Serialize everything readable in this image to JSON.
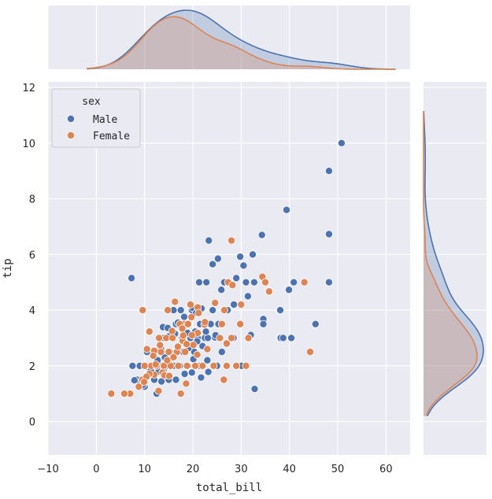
{
  "chart_data": {
    "type": "scatter",
    "xlabel": "total_bill",
    "ylabel": "tip",
    "xlim": [
      -10,
      65
    ],
    "ylim": [
      -1.2,
      12.2
    ],
    "xticks": [
      -10,
      0,
      10,
      20,
      30,
      40,
      50,
      60
    ],
    "yticks": [
      0,
      2,
      4,
      6,
      8,
      10,
      12
    ],
    "grid": true,
    "background": "#eaeaf2",
    "legend": {
      "title": "sex",
      "placement": "top-left",
      "entries": [
        "Male",
        "Female"
      ]
    },
    "marginals": {
      "top": "kde of total_bill by sex",
      "right": "kde of tip by sex"
    },
    "series": [
      {
        "name": "Male",
        "color": "#4c72b0",
        "points": [
          [
            7.3,
            5.15
          ],
          [
            50.8,
            10.0
          ],
          [
            48.2,
            9.0
          ],
          [
            39.4,
            7.6
          ],
          [
            48.2,
            6.73
          ],
          [
            34.3,
            6.7
          ],
          [
            23.3,
            6.5
          ],
          [
            29.8,
            5.92
          ],
          [
            32.4,
            6.0
          ],
          [
            25.2,
            5.85
          ],
          [
            30.5,
            5.6
          ],
          [
            24.1,
            5.65
          ],
          [
            21.3,
            5.0
          ],
          [
            22.8,
            5.0
          ],
          [
            26.5,
            5.0
          ],
          [
            31.0,
            5.0
          ],
          [
            32.7,
            5.0
          ],
          [
            40.9,
            5.0
          ],
          [
            48.2,
            5.0
          ],
          [
            29.0,
            5.15
          ],
          [
            25.9,
            4.73
          ],
          [
            39.9,
            4.73
          ],
          [
            31.4,
            4.5
          ],
          [
            27.2,
            4.0
          ],
          [
            28.5,
            4.2
          ],
          [
            24.1,
            4.0
          ],
          [
            19.8,
            4.0
          ],
          [
            17.5,
            4.0
          ],
          [
            16.0,
            4.0
          ],
          [
            38.1,
            4.0
          ],
          [
            20.0,
            4.08
          ],
          [
            18.2,
            3.76
          ],
          [
            23.7,
            3.5
          ],
          [
            25.3,
            3.5
          ],
          [
            16.5,
            3.5
          ],
          [
            13.8,
            3.39
          ],
          [
            45.4,
            3.5
          ],
          [
            34.6,
            3.68
          ],
          [
            34.6,
            3.5
          ],
          [
            32.0,
            3.11
          ],
          [
            38.2,
            3.0
          ],
          [
            38.7,
            3.0
          ],
          [
            40.4,
            3.0
          ],
          [
            28.4,
            3.0
          ],
          [
            24.6,
            3.02
          ],
          [
            22.5,
            3.0
          ],
          [
            21.0,
            3.0
          ],
          [
            19.5,
            3.0
          ],
          [
            17.8,
            3.0
          ],
          [
            15.5,
            3.0
          ],
          [
            14.0,
            3.0
          ],
          [
            21.5,
            3.5
          ],
          [
            20.5,
            3.23
          ],
          [
            18.9,
            3.18
          ],
          [
            16.3,
            3.15
          ],
          [
            15.0,
            3.06
          ],
          [
            23.1,
            3.0
          ],
          [
            22.0,
            2.71
          ],
          [
            20.3,
            2.5
          ],
          [
            18.0,
            2.5
          ],
          [
            16.8,
            2.56
          ],
          [
            15.2,
            2.5
          ],
          [
            13.4,
            2.6
          ],
          [
            12.0,
            2.5
          ],
          [
            10.5,
            2.5
          ],
          [
            26.0,
            2.5
          ],
          [
            23.0,
            2.2
          ],
          [
            21.5,
            2.0
          ],
          [
            20.1,
            2.24
          ],
          [
            19.0,
            2.0
          ],
          [
            17.3,
            2.0
          ],
          [
            16.0,
            2.0
          ],
          [
            14.5,
            2.0
          ],
          [
            13.0,
            2.0
          ],
          [
            11.6,
            2.0
          ],
          [
            10.3,
            2.0
          ],
          [
            9.0,
            2.0
          ],
          [
            7.5,
            2.0
          ],
          [
            30.1,
            2.0
          ],
          [
            29.0,
            2.0
          ],
          [
            27.0,
            2.0
          ],
          [
            25.0,
            2.0
          ],
          [
            23.2,
            1.78
          ],
          [
            21.7,
            1.58
          ],
          [
            19.8,
            1.76
          ],
          [
            18.3,
            1.71
          ],
          [
            16.5,
            1.5
          ],
          [
            15.0,
            1.5
          ],
          [
            13.5,
            1.44
          ],
          [
            12.0,
            1.5
          ],
          [
            10.4,
            1.6
          ],
          [
            8.5,
            1.5
          ],
          [
            7.9,
            1.48
          ],
          [
            32.8,
            1.17
          ],
          [
            12.5,
            1.0
          ],
          [
            10.0,
            1.25
          ],
          [
            9.5,
            1.5
          ],
          [
            11.0,
            1.92
          ],
          [
            12.9,
            1.8
          ],
          [
            14.2,
            2.3
          ],
          [
            17.0,
            2.7
          ],
          [
            18.8,
            3.48
          ],
          [
            20.7,
            3.9
          ],
          [
            22.7,
            3.23
          ],
          [
            24.7,
            3.1
          ],
          [
            20.9,
            2.88
          ],
          [
            19.1,
            2.64
          ],
          [
            14.8,
            3.36
          ],
          [
            16.9,
            3.55
          ],
          [
            21.8,
            4.06
          ],
          [
            12.7,
            2.2
          ],
          [
            11.3,
            1.83
          ],
          [
            9.7,
            1.32
          ],
          [
            13.9,
            1.82
          ]
        ]
      },
      {
        "name": "Female",
        "color": "#dd8452",
        "points": [
          [
            28.0,
            6.5
          ],
          [
            34.4,
            5.2
          ],
          [
            35.0,
            5.0
          ],
          [
            43.1,
            5.0
          ],
          [
            35.8,
            4.67
          ],
          [
            27.3,
            5.0
          ],
          [
            26.5,
            4.0
          ],
          [
            30.0,
            4.2
          ],
          [
            21.0,
            4.1
          ],
          [
            19.5,
            4.2
          ],
          [
            16.3,
            4.3
          ],
          [
            14.8,
            4.0
          ],
          [
            9.6,
            4.0
          ],
          [
            18.2,
            3.5
          ],
          [
            19.0,
            3.5
          ],
          [
            17.3,
            3.5
          ],
          [
            26.0,
            3.5
          ],
          [
            29.8,
            3.5
          ],
          [
            21.0,
            3.18
          ],
          [
            22.4,
            3.48
          ],
          [
            25.6,
            3.0
          ],
          [
            28.0,
            3.0
          ],
          [
            31.5,
            3.0
          ],
          [
            27.0,
            2.8
          ],
          [
            20.1,
            2.75
          ],
          [
            17.9,
            2.9
          ],
          [
            18.0,
            3.09
          ],
          [
            19.8,
            3.1
          ],
          [
            14.5,
            3.0
          ],
          [
            15.8,
            3.0
          ],
          [
            13.0,
            3.0
          ],
          [
            11.0,
            3.23
          ],
          [
            16.7,
            2.5
          ],
          [
            15.0,
            2.5
          ],
          [
            13.4,
            2.5
          ],
          [
            12.0,
            2.54
          ],
          [
            10.5,
            2.6
          ],
          [
            10.0,
            2.0
          ],
          [
            11.4,
            2.0
          ],
          [
            12.5,
            2.0
          ],
          [
            14.0,
            2.0
          ],
          [
            15.4,
            2.0
          ],
          [
            17.0,
            2.0
          ],
          [
            18.8,
            2.0
          ],
          [
            20.5,
            2.0
          ],
          [
            22.0,
            2.0
          ],
          [
            24.3,
            2.0
          ],
          [
            27.0,
            2.0
          ],
          [
            29.0,
            2.0
          ],
          [
            31.0,
            2.0
          ],
          [
            44.3,
            2.5
          ],
          [
            13.7,
            1.76
          ],
          [
            12.0,
            1.68
          ],
          [
            11.0,
            1.71
          ],
          [
            9.5,
            1.5
          ],
          [
            10.4,
            1.61
          ],
          [
            8.8,
            1.25
          ],
          [
            7.0,
            1.0
          ],
          [
            5.8,
            1.0
          ],
          [
            3.1,
            1.0
          ],
          [
            12.9,
            1.1
          ],
          [
            17.5,
            1.0
          ],
          [
            18.6,
            1.36
          ],
          [
            26.4,
            1.5
          ],
          [
            14.7,
            2.2
          ],
          [
            16.0,
            2.31
          ],
          [
            18.4,
            2.5
          ],
          [
            20.9,
            2.4
          ],
          [
            23.0,
            2.6
          ],
          [
            13.2,
            2.74
          ],
          [
            15.7,
            3.25
          ],
          [
            17.8,
            3.34
          ],
          [
            19.7,
            3.75
          ],
          [
            21.2,
            3.9
          ],
          [
            14.1,
            1.66
          ],
          [
            11.8,
            2.36
          ],
          [
            9.9,
            1.42
          ],
          [
            16.9,
            2.69
          ],
          [
            15.1,
            1.64
          ],
          [
            12.3,
            2.05
          ],
          [
            18.7,
            2.78
          ],
          [
            22.5,
            3.57
          ],
          [
            24.6,
            4.26
          ],
          [
            28.2,
            4.9
          ]
        ]
      }
    ]
  }
}
